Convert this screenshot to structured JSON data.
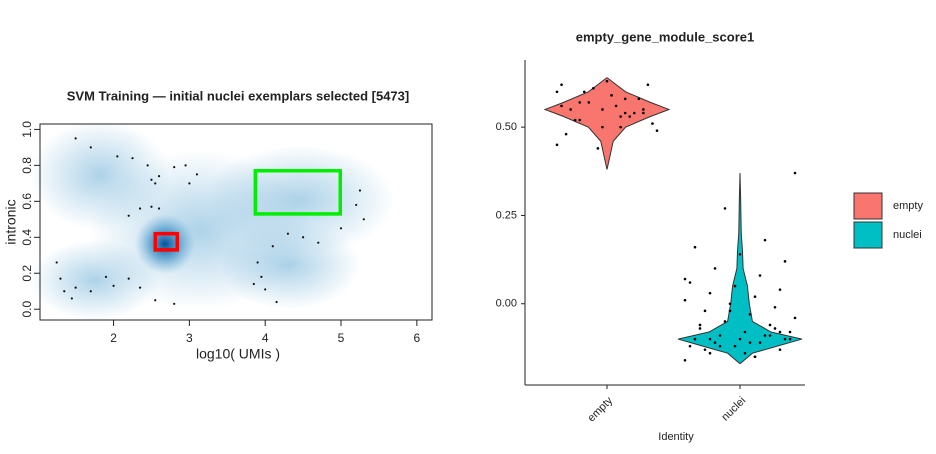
{
  "chart_data": [
    {
      "type": "density-scatter",
      "title": "SVM Training — initial nuclei exemplars selected [5473]",
      "xlabel": "log10( UMIs )",
      "ylabel": "intronic",
      "xlim": [
        1.03,
        6.2
      ],
      "ylim": [
        -0.06,
        1.03
      ],
      "xticks": [
        2,
        3,
        4,
        5,
        6
      ],
      "yticks": [
        {
          "value": 0,
          "label": "0.0"
        },
        0.2,
        0.4,
        0.6,
        0.8,
        {
          "value": 1,
          "label": "1.0"
        }
      ],
      "points": {
        "x": [
          1.5,
          1.7,
          2.05,
          2.25,
          2.45,
          2.5,
          2.6,
          2.8,
          2.95,
          3.0,
          3.1,
          2.55,
          2.2,
          2.35,
          2.5,
          2.6,
          1.25,
          1.3,
          1.35,
          1.5,
          1.7,
          1.9,
          2.0,
          2.2,
          2.35,
          2.55,
          2.8,
          1.45,
          3.9,
          3.95,
          4.0,
          4.1,
          4.3,
          4.5,
          4.7,
          5.0,
          5.2,
          5.25,
          5.3,
          4.15,
          3.85
        ],
        "y": [
          0.95,
          0.9,
          0.85,
          0.84,
          0.8,
          0.72,
          0.74,
          0.79,
          0.8,
          0.7,
          0.75,
          0.7,
          0.52,
          0.56,
          0.57,
          0.56,
          0.26,
          0.17,
          0.1,
          0.12,
          0.1,
          0.18,
          0.13,
          0.17,
          0.12,
          0.05,
          0.03,
          0.06,
          0.26,
          0.18,
          0.11,
          0.35,
          0.42,
          0.4,
          0.37,
          0.45,
          0.58,
          0.66,
          0.5,
          0.04,
          0.14
        ]
      },
      "regions": [
        {
          "color": "#ff0000",
          "xlim": [
            2.55,
            2.84
          ],
          "ylim": [
            0.33,
            0.42
          ]
        },
        {
          "color": "#00ee00",
          "xlim": [
            3.87,
            4.99
          ],
          "ylim": [
            0.53,
            0.77
          ]
        }
      ]
    },
    {
      "type": "violin",
      "title": "empty_gene_module_score1",
      "xlabel": "Identity",
      "categories": [
        "empty",
        "nuclei"
      ],
      "ylim": [
        -0.23,
        0.69
      ],
      "yticks": [
        {
          "value": 0,
          "label": "0.00"
        },
        0.25,
        {
          "value": 0.5,
          "label": "0.50"
        }
      ],
      "series": [
        {
          "name": "empty",
          "color": "#F8766D",
          "y": [
            0.38,
            0.42,
            0.46,
            0.5,
            0.53,
            0.55,
            0.57,
            0.6,
            0.62,
            0.64
          ],
          "width": [
            0,
            0.05,
            0.1,
            0.3,
            0.7,
            1,
            0.7,
            0.3,
            0.15,
            0
          ],
          "points": [
            0.45,
            0.5,
            0.52,
            0.54,
            0.55,
            0.56,
            0.58,
            0.6,
            0.62,
            0.63,
            0.48,
            0.53,
            0.57,
            0.51,
            0.59,
            0.55,
            0.54,
            0.61,
            0.49,
            0.56,
            0.52,
            0.58,
            0.44,
            0.6,
            0.53,
            0.57,
            0.55,
            0.5,
            0.62,
            0.54
          ]
        },
        {
          "name": "nuclei",
          "color": "#00BFC4",
          "y": [
            -0.17,
            -0.14,
            -0.12,
            -0.1,
            -0.08,
            -0.05,
            0,
            0.05,
            0.1,
            0.15,
            0.2,
            0.3,
            0.37
          ],
          "width": [
            0,
            0.2,
            0.6,
            1,
            0.5,
            0.2,
            0.15,
            0.12,
            0.05,
            0.04,
            0.02,
            0.01,
            0
          ],
          "points": [
            -0.16,
            -0.15,
            -0.14,
            -0.13,
            -0.12,
            -0.12,
            -0.11,
            -0.11,
            -0.1,
            -0.1,
            -0.1,
            -0.09,
            -0.09,
            -0.08,
            -0.08,
            -0.07,
            -0.06,
            -0.05,
            -0.04,
            -0.03,
            -0.02,
            -0.01,
            0,
            0.01,
            0.02,
            0.03,
            0.04,
            0.05,
            0.06,
            0.08,
            0.1,
            0.12,
            0.14,
            0.16,
            0.18,
            -0.12,
            -0.1,
            -0.14,
            -0.06,
            -0.09,
            0.27,
            0.37,
            -0.11,
            -0.13,
            -0.07,
            -0.02,
            0.07,
            -0.15,
            -0.1,
            -0.08
          ]
        }
      ]
    }
  ]
}
